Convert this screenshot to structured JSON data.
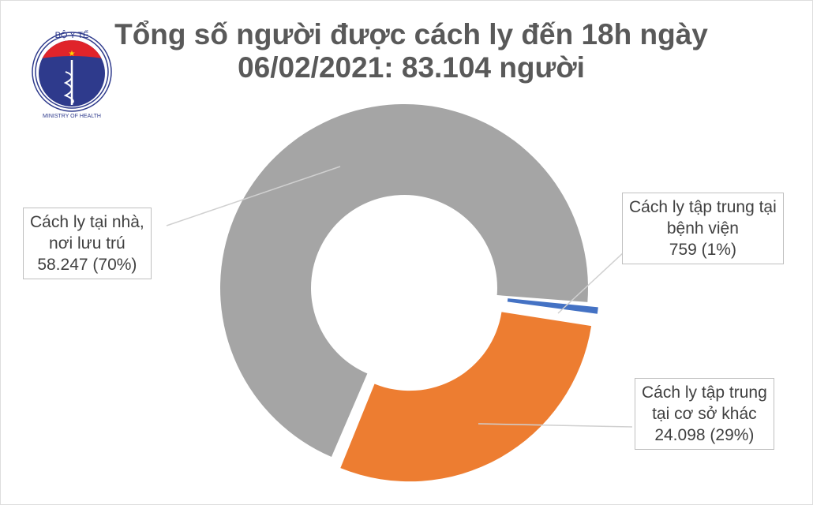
{
  "chart_data": {
    "type": "pie",
    "donut": true,
    "title": "Tổng số người được cách ly đến 18h ngày 06/02/2021: 83.104 người",
    "title_lines": [
      "Tổng số người được cách ly đến 18h ngày",
      "06/02/2021: 83.104 người"
    ],
    "slices": [
      {
        "label_lines": [
          "Cách ly tập trung tại",
          "bệnh viện",
          "759 (1%)"
        ],
        "value": 759,
        "percent": 1,
        "color": "#4472C4",
        "exploded": true
      },
      {
        "label_lines": [
          "Cách ly tập trung",
          "tại cơ sở khác",
          "24.098 (29%)"
        ],
        "value": 24098,
        "percent": 29,
        "color": "#ED7D31",
        "exploded": true
      },
      {
        "label_lines": [
          "Cách ly tại nhà,",
          "nơi lưu trú",
          "58.247 (70%)"
        ],
        "value": 58247,
        "percent": 70,
        "color": "#A5A5A5",
        "exploded": false
      }
    ],
    "legend": "none"
  },
  "logo": {
    "text_top": "BỘ Y TẾ",
    "text_bottom": "MINISTRY OF HEALTH",
    "colors": {
      "red": "#E0242A",
      "blue": "#2E3A8C"
    }
  }
}
